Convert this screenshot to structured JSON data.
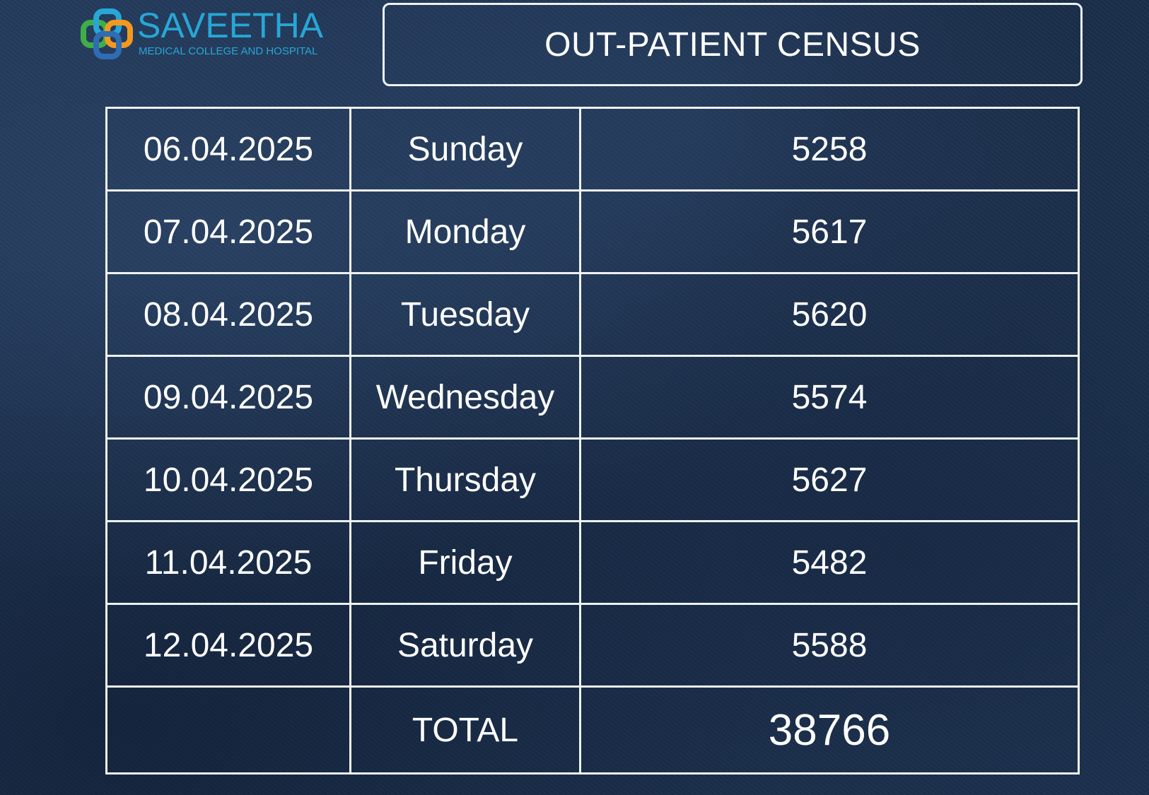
{
  "logo": {
    "name": "SAVEETHA",
    "subtitle": "MEDICAL COLLEGE AND HOSPITAL",
    "colors": {
      "primary": "#27a7d6",
      "ring_green": "#3fae49",
      "ring_orange": "#f39a1e",
      "ring_blue": "#2e6db4"
    }
  },
  "title": "OUT-PATIENT CENSUS",
  "census": {
    "rows": [
      {
        "date": "06.04.2025",
        "day": "Sunday",
        "count": "5258"
      },
      {
        "date": "07.04.2025",
        "day": "Monday",
        "count": "5617"
      },
      {
        "date": "08.04.2025",
        "day": "Tuesday",
        "count": "5620"
      },
      {
        "date": "09.04.2025",
        "day": "Wednesday",
        "count": "5574"
      },
      {
        "date": "10.04.2025",
        "day": "Thursday",
        "count": "5627"
      },
      {
        "date": "11.04.2025",
        "day": "Friday",
        "count": "5482"
      },
      {
        "date": "12.04.2025",
        "day": "Saturday",
        "count": "5588"
      }
    ],
    "total": {
      "label": "TOTAL",
      "count": "38766"
    }
  },
  "theme": {
    "background": "#1d3150",
    "text": "#ffffff",
    "border": "#eef2f6"
  }
}
